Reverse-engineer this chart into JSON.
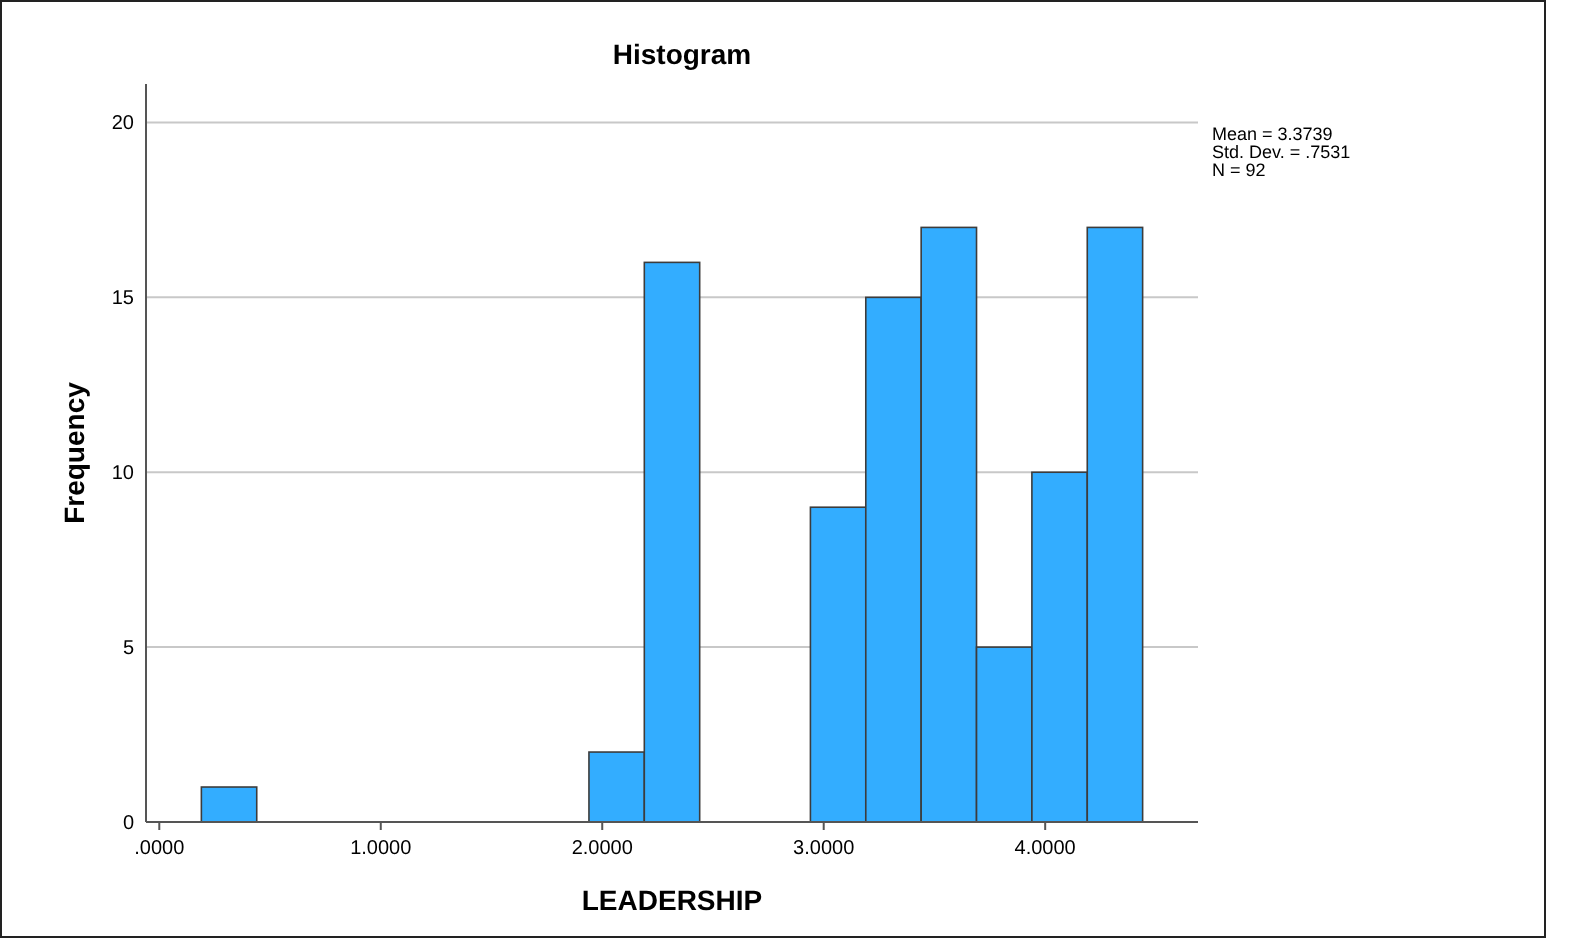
{
  "chart_data": {
    "type": "histogram",
    "title": "Histogram",
    "xlabel": "LEADERSHIP",
    "ylabel": "Frequency",
    "bins": [
      0.19,
      0.44,
      0.69,
      0.94,
      1.19,
      1.44,
      1.69,
      1.94,
      2.19,
      2.44,
      2.69,
      2.94,
      3.19,
      3.44,
      3.69,
      3.94,
      4.19,
      4.44
    ],
    "values": [
      1,
      0,
      0,
      0,
      0,
      0,
      0,
      2,
      16,
      0,
      0,
      9,
      15,
      17,
      5,
      10,
      17
    ],
    "color": "#33adff",
    "xlim": [
      -0.06,
      4.69
    ],
    "xticks": [
      {
        "value": 0,
        "label": ".0000"
      },
      {
        "value": 1,
        "label": "1.0000"
      },
      {
        "value": 2,
        "label": "2.0000"
      },
      {
        "value": 3,
        "label": "3.0000"
      },
      {
        "value": 4,
        "label": "4.0000"
      }
    ],
    "ylim": [
      0,
      21.1
    ],
    "yticks": [
      0,
      5,
      10,
      15,
      20
    ],
    "grid": "y",
    "annotations": [
      "Mean = 3.3739",
      "Std. Dev. = .7531",
      "N = 92"
    ]
  }
}
